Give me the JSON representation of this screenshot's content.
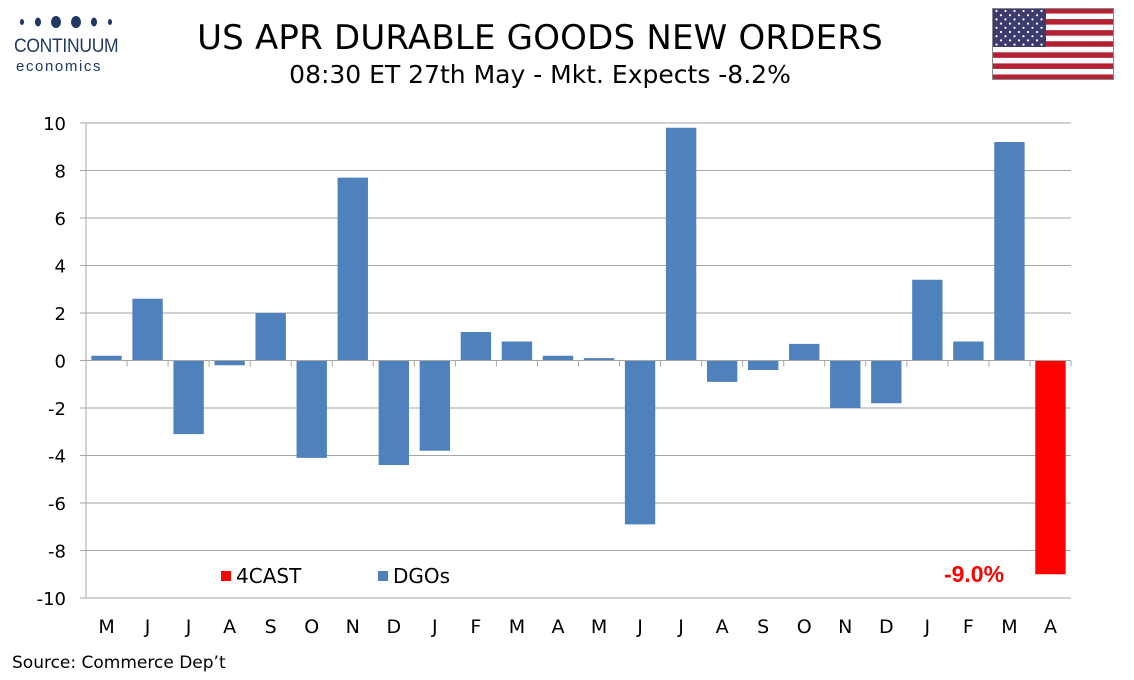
{
  "header": {
    "logo_brand": "CONTINUUM",
    "logo_sub": "economics",
    "title": "US APR DURABLE GOODS NEW ORDERS",
    "subtitle": "08:30 ET 27th May - Mkt. Expects -8.2%"
  },
  "footer": {
    "source": "Source: Commerce Dep’t"
  },
  "colors": {
    "dgo": "#4f81bd",
    "forecast": "#ff0000",
    "grid": "#a6a6a6",
    "logo": "#1f3864"
  },
  "icons": {
    "logo": "continuum-dots-logo",
    "flag": "us-flag-icon"
  },
  "chart_data": {
    "type": "bar",
    "title": "US APR DURABLE GOODS NEW ORDERS",
    "categories": [
      "M",
      "J",
      "J",
      "A",
      "S",
      "O",
      "N",
      "D",
      "J",
      "F",
      "M",
      "A",
      "M",
      "J",
      "J",
      "A",
      "S",
      "O",
      "N",
      "D",
      "J",
      "F",
      "M",
      "A"
    ],
    "series": [
      {
        "name": "DGOs",
        "color": "#4f81bd",
        "values": [
          0.2,
          2.6,
          -3.1,
          -0.2,
          2.0,
          -4.1,
          7.7,
          -4.4,
          -3.8,
          1.2,
          0.8,
          0.2,
          0.1,
          -6.9,
          9.8,
          -0.9,
          -0.4,
          0.7,
          -2.0,
          -1.8,
          3.4,
          0.8,
          9.2,
          null
        ]
      },
      {
        "name": "4CAST",
        "color": "#ff0000",
        "values": [
          null,
          null,
          null,
          null,
          null,
          null,
          null,
          null,
          null,
          null,
          null,
          null,
          null,
          null,
          null,
          null,
          null,
          null,
          null,
          null,
          null,
          null,
          null,
          -9.0
        ]
      }
    ],
    "annotation": "-9.0%",
    "ylim": [
      -10,
      10
    ],
    "yticks": [
      10,
      8,
      6,
      4,
      2,
      0,
      -2,
      -4,
      -6,
      -8,
      -10
    ],
    "grid": true,
    "legend": {
      "position": "bottom-left",
      "order": [
        "4CAST",
        "DGOs"
      ]
    },
    "xlabel": "",
    "ylabel": ""
  }
}
